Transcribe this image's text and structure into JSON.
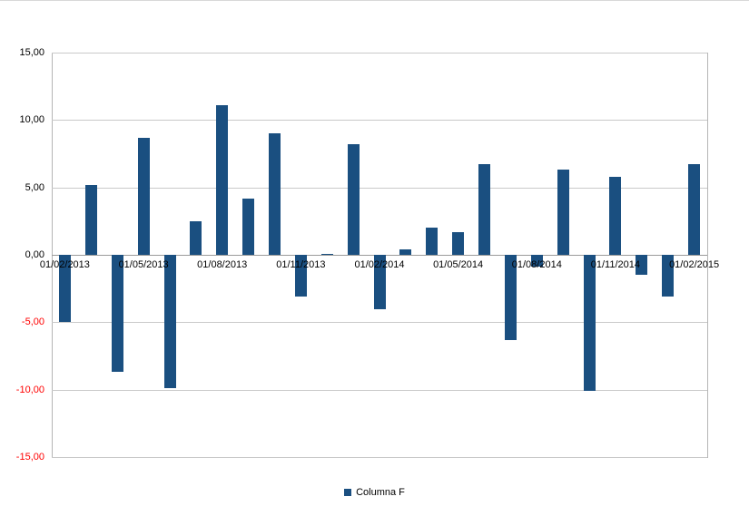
{
  "chart_data": {
    "type": "bar",
    "title": "",
    "series_name": "Columna F",
    "x": [
      "01/02/2013",
      "01/03/2013",
      "01/04/2013",
      "01/05/2013",
      "01/06/2013",
      "01/07/2013",
      "01/08/2013",
      "01/09/2013",
      "01/10/2013",
      "01/11/2013",
      "01/12/2013",
      "01/01/2014",
      "01/02/2014",
      "01/03/2014",
      "01/04/2014",
      "01/05/2014",
      "01/06/2014",
      "01/07/2014",
      "01/08/2014",
      "01/09/2014",
      "01/10/2014",
      "01/11/2014",
      "01/12/2014",
      "01/01/2015",
      "01/02/2015"
    ],
    "values": [
      -5.0,
      5.2,
      -8.7,
      8.7,
      -9.9,
      2.5,
      11.1,
      4.2,
      9.0,
      -3.1,
      0.1,
      8.2,
      -4.0,
      0.4,
      2.0,
      1.7,
      6.7,
      -6.3,
      -0.9,
      6.3,
      -10.1,
      5.8,
      -1.5,
      -3.1,
      6.7
    ],
    "x_tick_every": 3,
    "x_tick_labels": [
      "01/02/2013",
      "01/05/2013",
      "01/08/2013",
      "01/11/2013",
      "01/02/2014",
      "01/05/2014",
      "01/08/2014",
      "01/11/2014",
      "01/02/2015"
    ],
    "ylim": [
      -15,
      15
    ],
    "y_ticks": [
      15,
      10,
      5,
      0,
      -5,
      -10,
      -15
    ],
    "y_tick_labels": [
      "15,00",
      "10,00",
      "5,00",
      "0,00",
      "-5,00",
      "-10,00",
      "-15,00"
    ],
    "grid": true,
    "legend_position": "bottom",
    "bar_color": "#1a4f80",
    "negative_tick_color": "#ff0000",
    "tick_color": "#000000",
    "gridline_color": "#c9c9c9"
  }
}
